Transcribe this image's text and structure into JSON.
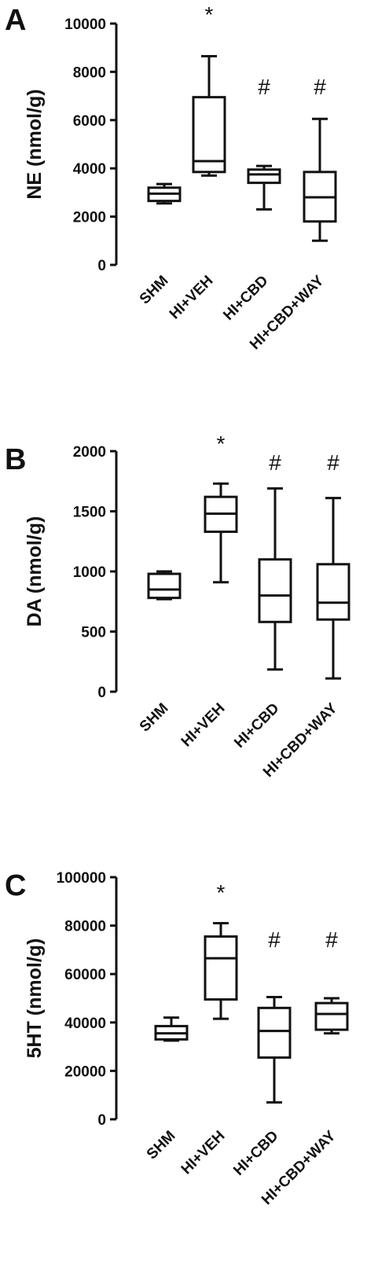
{
  "chart_data": [
    {
      "type": "box",
      "panel_label": "A",
      "ylabel": "NE (nmol/g)",
      "ylim": [
        0,
        10000
      ],
      "yticks": [
        0,
        2000,
        4000,
        6000,
        8000,
        10000
      ],
      "categories": [
        "SHM",
        "HI+VEH",
        "HI+CBD",
        "HI+CBD+WAY"
      ],
      "boxes": [
        {
          "category": "SHM",
          "min": 2550,
          "q1": 2650,
          "median": 2950,
          "q3": 3200,
          "max": 3350
        },
        {
          "category": "HI+VEH",
          "min": 3700,
          "q1": 3850,
          "median": 4300,
          "q3": 6950,
          "max": 8650
        },
        {
          "category": "HI+CBD",
          "min": 2300,
          "q1": 3400,
          "median": 3750,
          "q3": 3950,
          "max": 4100
        },
        {
          "category": "HI+CBD+WAY",
          "min": 1000,
          "q1": 1800,
          "median": 2800,
          "q3": 3850,
          "max": 6050
        }
      ],
      "annotations": [
        "",
        "*",
        "#",
        "#"
      ]
    },
    {
      "type": "box",
      "panel_label": "B",
      "ylabel": "DA (nmol/g)",
      "ylim": [
        0,
        2000
      ],
      "yticks": [
        0,
        500,
        1000,
        1500,
        2000
      ],
      "categories": [
        "SHM",
        "HI+VEH",
        "HI+CBD",
        "HI+CBD+WAY"
      ],
      "boxes": [
        {
          "category": "SHM",
          "min": 770,
          "q1": 780,
          "median": 850,
          "q3": 980,
          "max": 1000
        },
        {
          "category": "HI+VEH",
          "min": 910,
          "q1": 1330,
          "median": 1480,
          "q3": 1620,
          "max": 1730
        },
        {
          "category": "HI+CBD",
          "min": 185,
          "q1": 580,
          "median": 800,
          "q3": 1100,
          "max": 1690
        },
        {
          "category": "HI+CBD+WAY",
          "min": 110,
          "q1": 600,
          "median": 740,
          "q3": 1060,
          "max": 1610
        }
      ],
      "annotations": [
        "",
        "*",
        "#",
        "#"
      ]
    },
    {
      "type": "box",
      "panel_label": "C",
      "ylabel": "5HT (nmol/g)",
      "ylim": [
        0,
        100000
      ],
      "yticks": [
        0,
        20000,
        40000,
        60000,
        80000,
        100000
      ],
      "categories": [
        "SHM",
        "HI+VEH",
        "HI+CBD",
        "HI+CBD+WAY"
      ],
      "boxes": [
        {
          "category": "SHM",
          "min": 32500,
          "q1": 33000,
          "median": 35500,
          "q3": 38500,
          "max": 42000
        },
        {
          "category": "HI+VEH",
          "min": 41500,
          "q1": 49500,
          "median": 66500,
          "q3": 75500,
          "max": 81000
        },
        {
          "category": "HI+CBD",
          "min": 7000,
          "q1": 25500,
          "median": 36500,
          "q3": 46000,
          "max": 50500
        },
        {
          "category": "HI+CBD+WAY",
          "min": 35500,
          "q1": 37000,
          "median": 43500,
          "q3": 48000,
          "max": 50000
        }
      ],
      "annotations": [
        "",
        "*",
        "#",
        "#"
      ]
    }
  ]
}
